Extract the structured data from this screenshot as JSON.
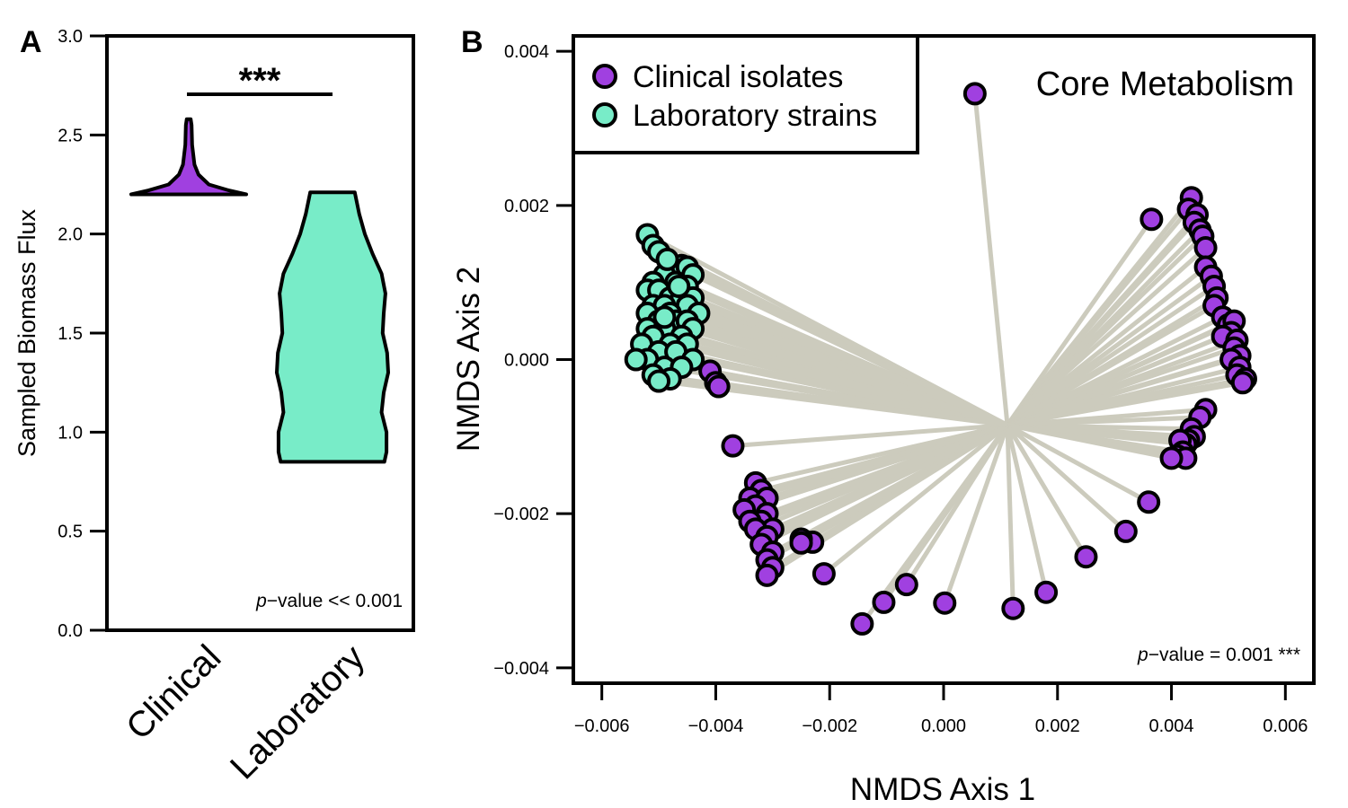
{
  "chart_data": [
    {
      "type": "violin",
      "panel": "A",
      "ylabel": "Sampled Biomass Flux",
      "xlabel": "",
      "ylim": [
        0.0,
        3.0
      ],
      "yticks": [
        "0.0",
        "0.5",
        "1.0",
        "1.5",
        "2.0",
        "2.5",
        "3.0"
      ],
      "categories": [
        "Clinical",
        "Laboratory"
      ],
      "colors": {
        "Clinical": "#a040e0",
        "Laboratory": "#78ecc8"
      },
      "series": [
        {
          "category": "Clinical",
          "min": 2.2,
          "max": 2.58,
          "profile": [
            [
              2.2,
              1.0
            ],
            [
              2.22,
              0.7
            ],
            [
              2.25,
              0.35
            ],
            [
              2.3,
              0.17
            ],
            [
              2.35,
              0.1
            ],
            [
              2.4,
              0.08
            ],
            [
              2.45,
              0.06
            ],
            [
              2.5,
              0.055
            ],
            [
              2.55,
              0.05
            ],
            [
              2.58,
              0.035
            ]
          ]
        },
        {
          "category": "Laboratory",
          "min": 0.85,
          "max": 2.21,
          "profile": [
            [
              0.85,
              0.93
            ],
            [
              0.9,
              0.97
            ],
            [
              1.0,
              0.97
            ],
            [
              1.1,
              0.88
            ],
            [
              1.2,
              0.92
            ],
            [
              1.3,
              1.0
            ],
            [
              1.4,
              0.98
            ],
            [
              1.5,
              0.9
            ],
            [
              1.6,
              0.92
            ],
            [
              1.7,
              0.95
            ],
            [
              1.8,
              0.88
            ],
            [
              1.9,
              0.72
            ],
            [
              2.0,
              0.58
            ],
            [
              2.1,
              0.48
            ],
            [
              2.21,
              0.4
            ]
          ]
        }
      ],
      "significance": "***",
      "annotation": {
        "italic": "p",
        "text": "−value << 0.001"
      }
    },
    {
      "type": "scatter",
      "panel": "B",
      "title": "Core Metabolism",
      "xlabel": "NMDS Axis 1",
      "ylabel": "NMDS Axis 2",
      "xlim": [
        -0.0065,
        0.0065
      ],
      "ylim": [
        -0.0042,
        0.0042
      ],
      "xticks": [
        "−0.006",
        "−0.004",
        "−0.002",
        "0.000",
        "0.002",
        "0.004",
        "0.006"
      ],
      "yticks": [
        "−0.004",
        "−0.002",
        "0.000",
        "0.002",
        "0.004"
      ],
      "centroid": [
        0.00112,
        -0.00085
      ],
      "legend": [
        "Clinical isolates",
        "Laboratory strains"
      ],
      "legend_position": "top-left",
      "colors": {
        "Clinical isolates": "#a040e0",
        "Laboratory strains": "#78ecc8",
        "spokes": "#cccbbd"
      },
      "annotation": {
        "italic": "p",
        "text": "−value = 0.001 ***"
      },
      "series": [
        {
          "name": "Clinical isolates",
          "points": [
            [
              0.00055,
              0.00345
            ],
            [
              0.00365,
              0.00182
            ],
            [
              0.00435,
              0.0021
            ],
            [
              0.0043,
              0.00195
            ],
            [
              0.00445,
              0.00188
            ],
            [
              0.0044,
              0.00178
            ],
            [
              0.0045,
              0.00168
            ],
            [
              0.00455,
              0.0016
            ],
            [
              0.0046,
              0.00145
            ],
            [
              0.0046,
              0.0012
            ],
            [
              0.0047,
              0.00108
            ],
            [
              0.00475,
              0.00095
            ],
            [
              0.0048,
              0.0008
            ],
            [
              0.00475,
              0.0007
            ],
            [
              0.0049,
              0.00055
            ],
            [
              0.005,
              0.00045
            ],
            [
              0.0051,
              0.0005
            ],
            [
              0.00505,
              0.00035
            ],
            [
              0.0049,
              0.0003
            ],
            [
              0.00515,
              0.00025
            ],
            [
              0.0051,
              0.00015
            ],
            [
              0.0052,
              5e-05
            ],
            [
              0.00505,
              0.0
            ],
            [
              0.0052,
              -0.0001
            ],
            [
              0.00515,
              -0.0002
            ],
            [
              0.0053,
              -0.00025
            ],
            [
              0.00525,
              -0.0003
            ],
            [
              0.0046,
              -0.00065
            ],
            [
              0.0045,
              -0.00075
            ],
            [
              0.00435,
              -0.0009
            ],
            [
              0.0044,
              -0.001
            ],
            [
              0.0043,
              -0.00105
            ],
            [
              0.00425,
              -0.0011
            ],
            [
              0.00415,
              -0.00105
            ],
            [
              0.0042,
              -0.0012
            ],
            [
              0.0041,
              -0.00125
            ],
            [
              0.00425,
              -0.00128
            ],
            [
              0.004,
              -0.00128
            ],
            [
              0.0036,
              -0.00185
            ],
            [
              0.0032,
              -0.00223
            ],
            [
              0.0025,
              -0.00256
            ],
            [
              0.0018,
              -0.00302
            ],
            [
              0.00122,
              -0.00323
            ],
            [
              2e-05,
              -0.00316
            ],
            [
              -0.00065,
              -0.00292
            ],
            [
              -0.00105,
              -0.00315
            ],
            [
              -0.00143,
              -0.00343
            ],
            [
              -0.0021,
              -0.00278
            ],
            [
              -0.0023,
              -0.00237
            ],
            [
              -0.0025,
              -0.00233
            ],
            [
              -0.0025,
              -0.00238
            ],
            [
              -0.0037,
              -0.00112
            ],
            [
              -0.0033,
              -0.0016
            ],
            [
              -0.0032,
              -0.0017
            ],
            [
              -0.0034,
              -0.0018
            ],
            [
              -0.0031,
              -0.0018
            ],
            [
              -0.0033,
              -0.0019
            ],
            [
              -0.0035,
              -0.00195
            ],
            [
              -0.0031,
              -0.002
            ],
            [
              -0.0032,
              -0.0021
            ],
            [
              -0.0034,
              -0.0021
            ],
            [
              -0.003,
              -0.0022
            ],
            [
              -0.0033,
              -0.0022
            ],
            [
              -0.0031,
              -0.0023
            ],
            [
              -0.0032,
              -0.0024
            ],
            [
              -0.003,
              -0.0025
            ],
            [
              -0.0031,
              -0.0026
            ],
            [
              -0.003,
              -0.0027
            ],
            [
              -0.0031,
              -0.0028
            ],
            [
              -0.0041,
              -0.00015
            ],
            [
              -0.004,
              -0.0003
            ],
            [
              -0.00395,
              -0.00035
            ]
          ]
        },
        {
          "name": "Laboratory strains",
          "points": [
            [
              -0.0052,
              0.00162
            ],
            [
              -0.0051,
              0.00148
            ],
            [
              -0.005,
              0.0014
            ],
            [
              -0.0048,
              0.00125
            ],
            [
              -0.0046,
              0.00122
            ],
            [
              -0.0045,
              0.0012
            ],
            [
              -0.0044,
              0.0011
            ],
            [
              -0.0049,
              0.0011
            ],
            [
              -0.0051,
              0.001
            ],
            [
              -0.0047,
              0.001
            ],
            [
              -0.0045,
              0.00095
            ],
            [
              -0.0052,
              0.0009
            ],
            [
              -0.005,
              0.0009
            ],
            [
              -0.0048,
              0.0008
            ],
            [
              -0.0046,
              0.0008
            ],
            [
              -0.0044,
              0.0008
            ],
            [
              -0.0051,
              0.0007
            ],
            [
              -0.0049,
              0.0007
            ],
            [
              -0.0045,
              0.0007
            ],
            [
              -0.0043,
              0.0006
            ],
            [
              -0.0052,
              0.0006
            ],
            [
              -0.0048,
              0.0006
            ],
            [
              -0.0047,
              0.0005
            ],
            [
              -0.0045,
              0.0005
            ],
            [
              -0.005,
              0.0005
            ],
            [
              -0.0052,
              0.0004
            ],
            [
              -0.0049,
              0.0004
            ],
            [
              -0.0044,
              0.0004
            ],
            [
              -0.0046,
              0.0003
            ],
            [
              -0.0051,
              0.0003
            ],
            [
              -0.0053,
              0.0002
            ],
            [
              -0.0048,
              0.0002
            ],
            [
              -0.0045,
              0.0002
            ],
            [
              -0.005,
              0.0001
            ],
            [
              -0.0047,
              0.0001
            ],
            [
              -0.0052,
              0.0
            ],
            [
              -0.0044,
              0.0
            ],
            [
              -0.0049,
              -0.0001
            ],
            [
              -0.0046,
              -0.0001
            ],
            [
              -0.0054,
              0.0
            ],
            [
              -0.0051,
              -0.0002
            ],
            [
              -0.0048,
              -0.00025
            ],
            [
              -0.005,
              -0.00028
            ],
            [
              -0.00485,
              0.0013
            ],
            [
              -0.00465,
              0.00095
            ],
            [
              -0.0049,
              0.00055
            ]
          ]
        }
      ]
    }
  ]
}
